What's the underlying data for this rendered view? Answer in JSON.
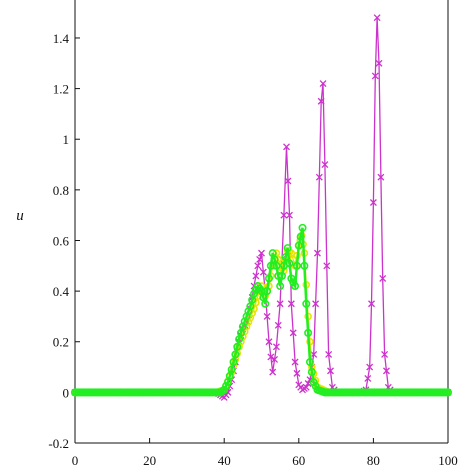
{
  "chart_data": {
    "type": "line",
    "title": "",
    "xlabel": "",
    "ylabel": "u",
    "xlim": [
      0,
      100
    ],
    "ylim": [
      -0.2,
      1.55
    ],
    "xticks": [
      "0",
      "20",
      "40",
      "60",
      "80",
      "100"
    ],
    "yticks": [
      "-0.2",
      "0",
      "0.2",
      "0.4",
      "0.6",
      "0.8",
      "1",
      "1.2",
      "1.4"
    ],
    "grid": false,
    "series": [
      {
        "name": "",
        "color": "#cc33cc",
        "marker": "x",
        "x": [
          0,
          38,
          39,
          40,
          41,
          42,
          43,
          44,
          45,
          46,
          47,
          48,
          49,
          50,
          51,
          52,
          53,
          54,
          55,
          56,
          56.7,
          57.5,
          58,
          59,
          60,
          61,
          62,
          63,
          64,
          65,
          66,
          66.5,
          67,
          67.5,
          68,
          69,
          70,
          72,
          75,
          77,
          78,
          79,
          79.5,
          80,
          80.5,
          81,
          81.5,
          82,
          82.5,
          83,
          84,
          85,
          86,
          88,
          90,
          100
        ],
        "y": [
          0.0,
          0.0,
          -0.01,
          -0.02,
          0.0,
          0.05,
          0.12,
          0.2,
          0.25,
          0.28,
          0.33,
          0.42,
          0.5,
          0.55,
          0.4,
          0.2,
          0.08,
          0.18,
          0.35,
          0.7,
          0.97,
          0.7,
          0.35,
          0.12,
          0.03,
          0.01,
          0.02,
          0.05,
          0.15,
          0.55,
          1.15,
          1.22,
          0.9,
          0.5,
          0.15,
          0.02,
          0.0,
          0.0,
          0.0,
          0.0,
          0.01,
          0.1,
          0.35,
          0.75,
          1.25,
          1.48,
          1.3,
          0.85,
          0.45,
          0.15,
          0.02,
          0.0,
          0.0,
          0.0,
          0.0,
          0.0
        ]
      },
      {
        "name": "",
        "color": "#e4e400",
        "marker": "o",
        "x": [
          0,
          38,
          40,
          42,
          44,
          46,
          48,
          49,
          50,
          51,
          52,
          53,
          54,
          55,
          56,
          57,
          58,
          59,
          60,
          60.8,
          61.5,
          62.5,
          63.5,
          65,
          68,
          100
        ],
        "y": [
          0.0,
          0.0,
          0.01,
          0.08,
          0.18,
          0.26,
          0.33,
          0.38,
          0.42,
          0.38,
          0.42,
          0.5,
          0.55,
          0.5,
          0.48,
          0.56,
          0.55,
          0.5,
          0.58,
          0.62,
          0.55,
          0.3,
          0.1,
          0.02,
          0.0,
          0.0
        ]
      },
      {
        "name": "",
        "color": "#22ee22",
        "marker": "o",
        "x": [
          0,
          37,
          39,
          40,
          41,
          42,
          43,
          44,
          45,
          46,
          47,
          48,
          49,
          50,
          51,
          52,
          53,
          54,
          55,
          56,
          57,
          58,
          59,
          60,
          61,
          62,
          63,
          64,
          65,
          67,
          70,
          100
        ],
        "y": [
          0.0,
          0.0,
          0.0,
          0.01,
          0.04,
          0.09,
          0.15,
          0.21,
          0.26,
          0.3,
          0.34,
          0.39,
          0.42,
          0.4,
          0.35,
          0.45,
          0.55,
          0.5,
          0.42,
          0.5,
          0.57,
          0.45,
          0.42,
          0.58,
          0.65,
          0.35,
          0.12,
          0.04,
          0.01,
          0.0,
          0.0,
          0.0
        ]
      }
    ]
  }
}
